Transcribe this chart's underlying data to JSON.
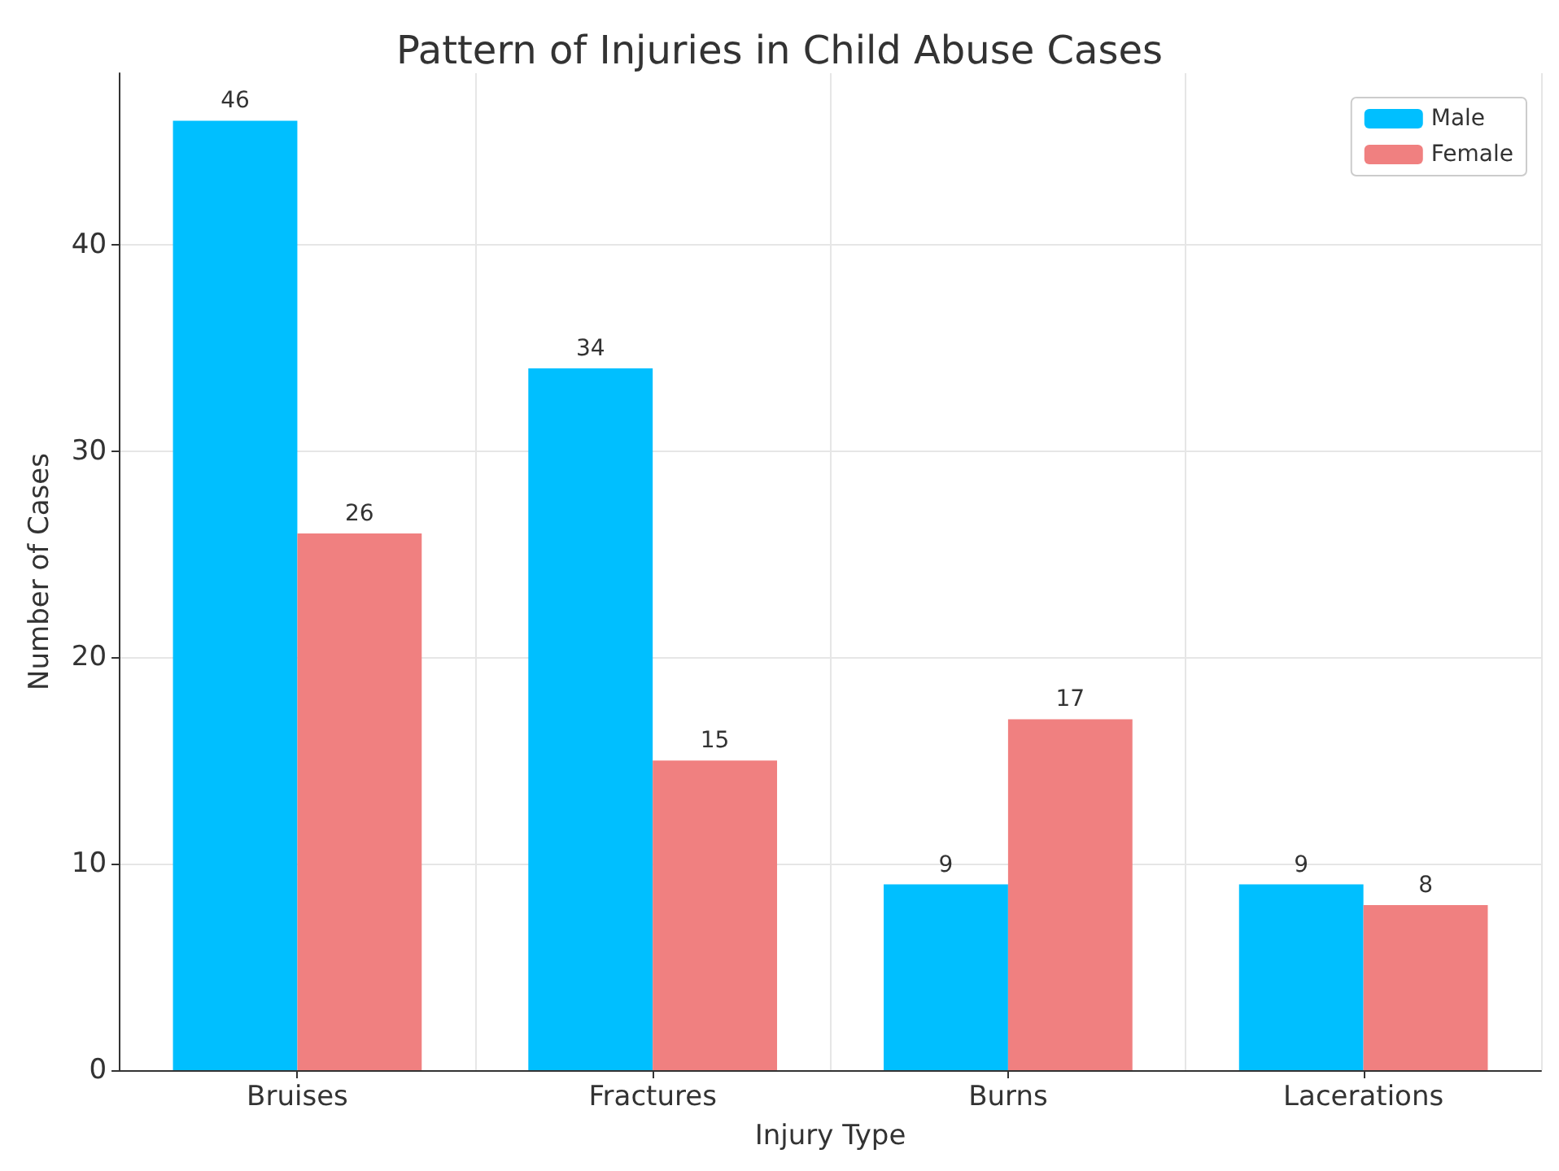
{
  "chart_data": {
    "type": "bar",
    "title": "Pattern of Injuries in Child Abuse Cases",
    "xlabel": "Injury Type",
    "ylabel": "Number of Cases",
    "categories": [
      "Bruises",
      "Fractures",
      "Burns",
      "Lacerations"
    ],
    "series": [
      {
        "name": "Male",
        "color": "#00bfff",
        "values": [
          46,
          34,
          9,
          9
        ]
      },
      {
        "name": "Female",
        "color": "#f08080",
        "values": [
          26,
          15,
          17,
          8
        ]
      }
    ],
    "ylim": [
      0,
      48.3
    ],
    "yticks": [
      0,
      10,
      20,
      30,
      40
    ],
    "grid": true,
    "legend": "top right",
    "data_labels": true
  }
}
